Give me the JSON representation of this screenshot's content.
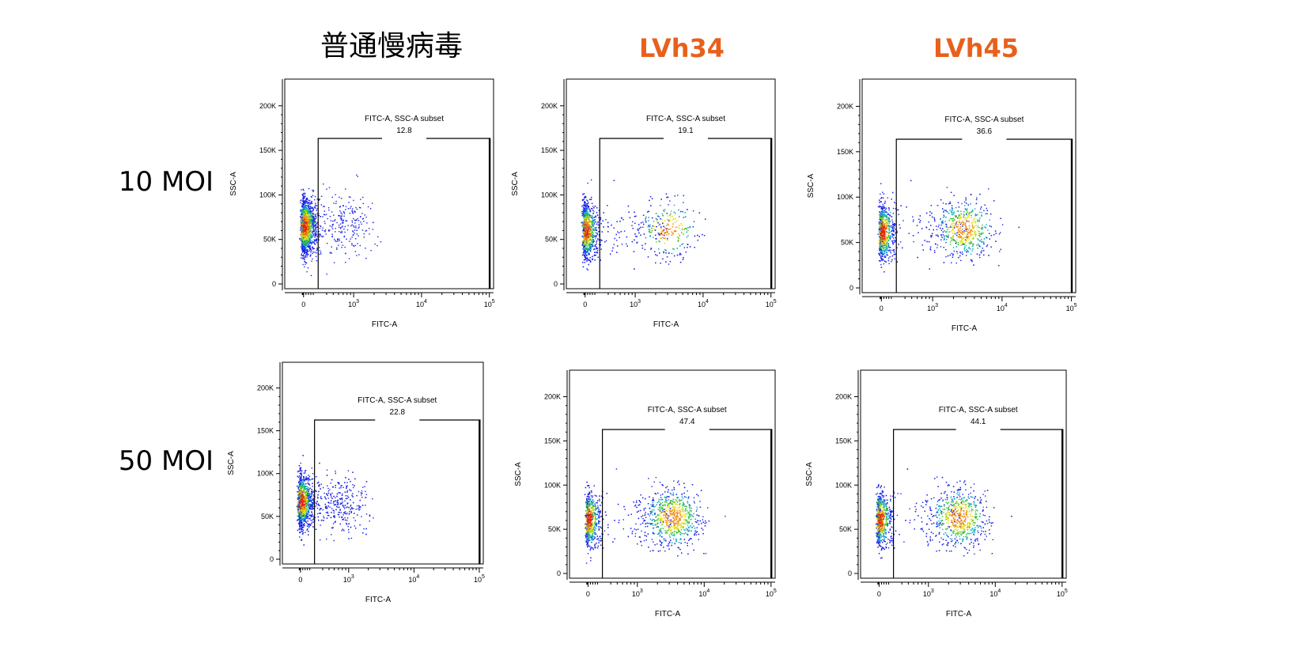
{
  "column_headers": [
    {
      "text": "普通慢病毒",
      "color": "#000000"
    },
    {
      "text": "LVh34",
      "color": "#E8601C"
    },
    {
      "text": "LVh45",
      "color": "#E8601C"
    }
  ],
  "row_headers": [
    "10 MOI",
    "50 MOI"
  ],
  "chart_data": [
    {
      "type": "scatter",
      "panel": "10 MOI / 普通慢病毒",
      "xlabel": "FITC-A",
      "ylabel": "SSC-A",
      "x_scale": "biexponential",
      "x_ticks": [
        "0",
        "10^3",
        "10^4",
        "10^5"
      ],
      "y_ticks": [
        "0",
        "50K",
        "100K",
        "150K",
        "200K"
      ],
      "ylim": [
        0,
        230000
      ],
      "gate": {
        "name": "FITC-A, SSC-A subset",
        "percent": "12.8"
      },
      "populations": [
        {
          "label": "negative",
          "fitc_center": 0,
          "ssc_center": 65000
        }
      ]
    },
    {
      "type": "scatter",
      "panel": "10 MOI / LVh34",
      "xlabel": "FITC-A",
      "ylabel": "SSC-A",
      "x_scale": "biexponential",
      "x_ticks": [
        "0",
        "10^3",
        "10^4",
        "10^5"
      ],
      "y_ticks": [
        "0",
        "50K",
        "100K",
        "150K",
        "200K"
      ],
      "ylim": [
        0,
        230000
      ],
      "gate": {
        "name": "FITC-A, SSC-A subset",
        "percent": "19.1"
      },
      "populations": [
        {
          "label": "negative",
          "fitc_center": 0,
          "ssc_center": 60000
        },
        {
          "label": "positive",
          "fitc_center": 3000,
          "ssc_center": 62000
        }
      ]
    },
    {
      "type": "scatter",
      "panel": "10 MOI / LVh45",
      "xlabel": "FITC-A",
      "ylabel": "SSC-A",
      "x_scale": "biexponential",
      "x_ticks": [
        "0",
        "10^3",
        "10^4",
        "10^5"
      ],
      "y_ticks": [
        "0",
        "50K",
        "100K",
        "150K",
        "200K"
      ],
      "ylim": [
        0,
        230000
      ],
      "gate": {
        "name": "FITC-A, SSC-A subset",
        "percent": "36.6"
      },
      "populations": [
        {
          "label": "negative",
          "fitc_center": 0,
          "ssc_center": 62000
        },
        {
          "label": "positive",
          "fitc_center": 2800,
          "ssc_center": 66000
        }
      ]
    },
    {
      "type": "scatter",
      "panel": "50 MOI / 普通慢病毒",
      "xlabel": "FITC-A",
      "ylabel": "SSC-A",
      "x_scale": "biexponential",
      "x_ticks": [
        "0",
        "10^3",
        "10^4",
        "10^5"
      ],
      "y_ticks": [
        "0",
        "50K",
        "100K",
        "150K",
        "200K"
      ],
      "ylim": [
        0,
        230000
      ],
      "gate": {
        "name": "FITC-A, SSC-A subset",
        "percent": "22.8"
      },
      "populations": [
        {
          "label": "negative",
          "fitc_center": 0,
          "ssc_center": 68000
        }
      ]
    },
    {
      "type": "scatter",
      "panel": "50 MOI / LVh34",
      "xlabel": "FITC-A",
      "ylabel": "SSC-A",
      "x_scale": "biexponential",
      "x_ticks": [
        "0",
        "10^3",
        "10^4",
        "10^5"
      ],
      "y_ticks": [
        "0",
        "50K",
        "100K",
        "150K",
        "200K"
      ],
      "ylim": [
        0,
        230000
      ],
      "gate": {
        "name": "FITC-A, SSC-A subset",
        "percent": "47.4"
      },
      "populations": [
        {
          "label": "negative",
          "fitc_center": 0,
          "ssc_center": 62000
        },
        {
          "label": "positive",
          "fitc_center": 3300,
          "ssc_center": 64000
        }
      ]
    },
    {
      "type": "scatter",
      "panel": "50 MOI / LVh45",
      "xlabel": "FITC-A",
      "ylabel": "SSC-A",
      "x_scale": "biexponential",
      "x_ticks": [
        "0",
        "10^3",
        "10^4",
        "10^5"
      ],
      "y_ticks": [
        "0",
        "50K",
        "100K",
        "150K",
        "200K"
      ],
      "ylim": [
        0,
        230000
      ],
      "gate": {
        "name": "FITC-A, SSC-A subset",
        "percent": "44.1"
      },
      "populations": [
        {
          "label": "negative",
          "fitc_center": 0,
          "ssc_center": 62000
        },
        {
          "label": "positive",
          "fitc_center": 2800,
          "ssc_center": 64000
        }
      ]
    }
  ]
}
